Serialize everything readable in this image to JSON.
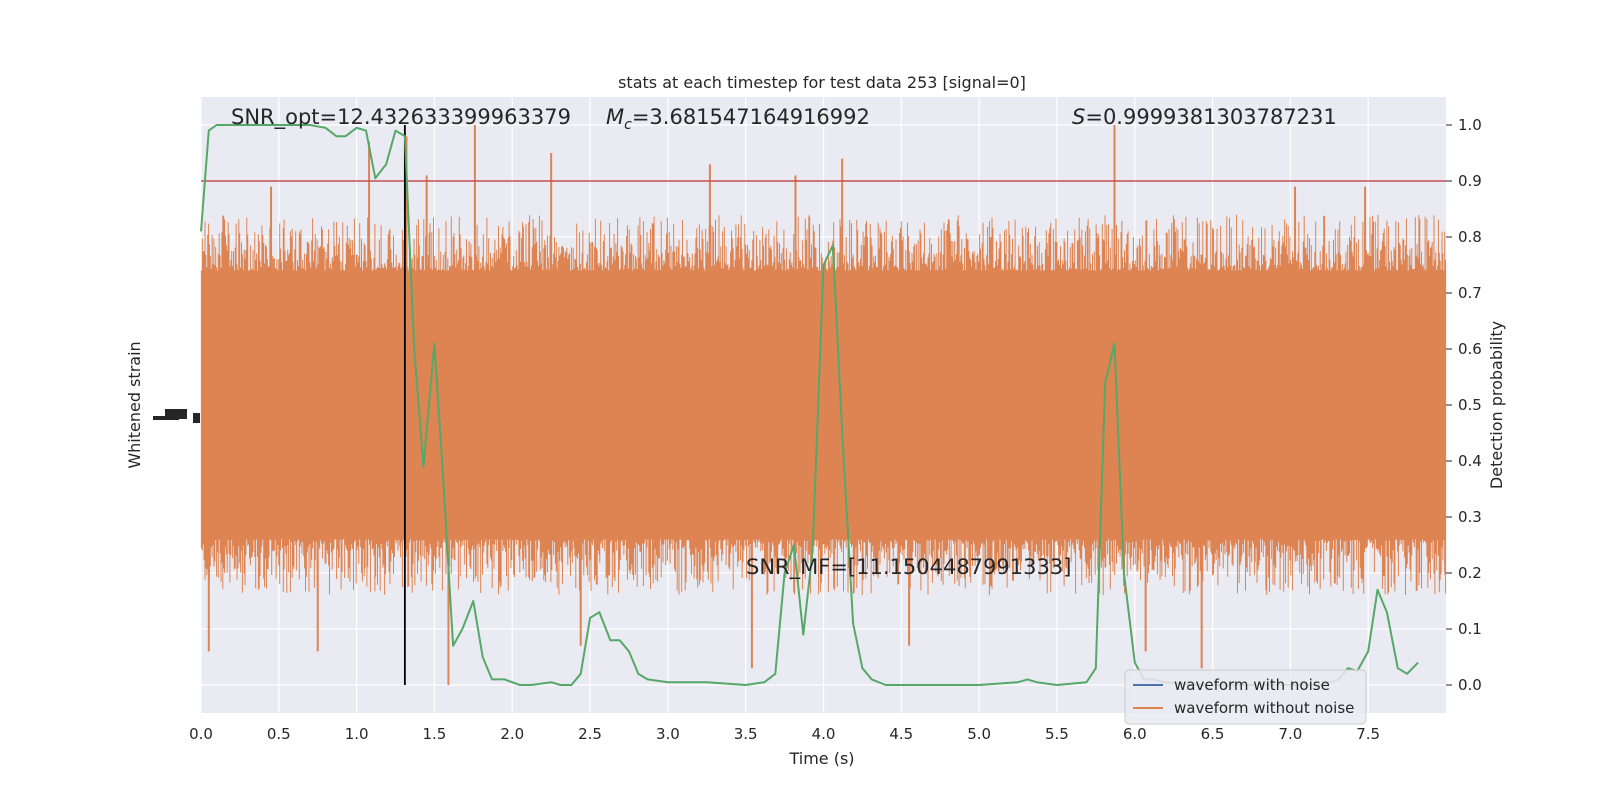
{
  "chart_data": {
    "type": "line",
    "title": "stats at each timestep for test data 253 [signal=0]",
    "xlabel": "Time (s)",
    "ylabel_left": "Whitened strain",
    "ylabel_right": "Detection probability",
    "xlim": [
      0,
      8
    ],
    "ylim_right": [
      -0.05,
      1.05
    ],
    "x_ticks": [
      "0.0",
      "0.5",
      "1.0",
      "1.5",
      "2.0",
      "2.5",
      "3.0",
      "3.5",
      "4.0",
      "4.5",
      "5.0",
      "5.5",
      "6.0",
      "6.5",
      "7.0",
      "7.5"
    ],
    "y_ticks_right": [
      "0.0",
      "0.1",
      "0.2",
      "0.3",
      "0.4",
      "0.5",
      "0.6",
      "0.7",
      "0.8",
      "0.9",
      "1.0"
    ],
    "grid": true,
    "background": "#eaeaf2",
    "threshold": {
      "y": 0.9,
      "color": "#c44e52"
    },
    "marker_line": {
      "x": 1.31,
      "color": "#000000"
    },
    "annotations": {
      "snr_opt": "SNR_opt=12.432633399963379",
      "mc_symbol": "M",
      "mc_sub": "c",
      "mc_value": "=3.681547164916992",
      "s_symbol": "S",
      "s_value": "=0.9999381303787231",
      "snr_mf": "SNR_MF=[11.1504487991333]"
    },
    "legend": {
      "position": "lower-right",
      "entries": [
        {
          "label": "waveform with noise",
          "color": "#4c72b0"
        },
        {
          "label": "waveform without noise",
          "color": "#dd8452"
        }
      ]
    },
    "series": [
      {
        "name": "waveform without noise",
        "color": "#dd8452",
        "style": "dense-noise",
        "core_range": [
          0.26,
          0.74
        ],
        "typical_peak_range": [
          0.16,
          0.84
        ],
        "spikes": [
          [
            0.05,
            0.06
          ],
          [
            0.45,
            0.89
          ],
          [
            0.75,
            0.06
          ],
          [
            1.08,
            0.97
          ],
          [
            1.32,
            0.98
          ],
          [
            1.45,
            0.91
          ],
          [
            1.59,
            0.0
          ],
          [
            1.76,
            1.0
          ],
          [
            2.25,
            0.95
          ],
          [
            2.44,
            0.07
          ],
          [
            3.27,
            0.93
          ],
          [
            3.54,
            0.03
          ],
          [
            3.82,
            0.91
          ],
          [
            4.12,
            0.94
          ],
          [
            4.55,
            0.07
          ],
          [
            5.87,
            1.0
          ],
          [
            6.07,
            0.06
          ],
          [
            6.43,
            0.03
          ],
          [
            7.03,
            0.89
          ],
          [
            7.48,
            0.89
          ]
        ]
      },
      {
        "name": "Detection probability",
        "color": "#55a868",
        "points": [
          [
            0.0,
            0.81
          ],
          [
            0.05,
            0.99
          ],
          [
            0.1,
            1.0
          ],
          [
            0.2,
            1.0
          ],
          [
            0.3,
            1.0
          ],
          [
            0.4,
            1.0
          ],
          [
            0.5,
            1.0
          ],
          [
            0.6,
            1.0
          ],
          [
            0.7,
            1.0
          ],
          [
            0.8,
            0.995
          ],
          [
            0.87,
            0.98
          ],
          [
            0.93,
            0.98
          ],
          [
            1.0,
            0.995
          ],
          [
            1.06,
            0.99
          ],
          [
            1.12,
            0.905
          ],
          [
            1.19,
            0.93
          ],
          [
            1.25,
            0.99
          ],
          [
            1.31,
            0.98
          ],
          [
            1.37,
            0.6
          ],
          [
            1.43,
            0.39
          ],
          [
            1.5,
            0.61
          ],
          [
            1.56,
            0.35
          ],
          [
            1.62,
            0.07
          ],
          [
            1.68,
            0.1
          ],
          [
            1.75,
            0.15
          ],
          [
            1.81,
            0.05
          ],
          [
            1.87,
            0.01
          ],
          [
            1.95,
            0.01
          ],
          [
            2.05,
            0.0
          ],
          [
            2.12,
            0.0
          ],
          [
            2.25,
            0.005
          ],
          [
            2.31,
            0.0
          ],
          [
            2.38,
            0.0
          ],
          [
            2.44,
            0.02
          ],
          [
            2.5,
            0.12
          ],
          [
            2.56,
            0.13
          ],
          [
            2.63,
            0.08
          ],
          [
            2.69,
            0.08
          ],
          [
            2.75,
            0.06
          ],
          [
            2.81,
            0.02
          ],
          [
            2.87,
            0.01
          ],
          [
            3.0,
            0.005
          ],
          [
            3.25,
            0.005
          ],
          [
            3.5,
            0.0
          ],
          [
            3.62,
            0.005
          ],
          [
            3.69,
            0.02
          ],
          [
            3.75,
            0.2
          ],
          [
            3.81,
            0.25
          ],
          [
            3.87,
            0.09
          ],
          [
            3.93,
            0.24
          ],
          [
            4.0,
            0.75
          ],
          [
            4.06,
            0.785
          ],
          [
            4.12,
            0.45
          ],
          [
            4.19,
            0.11
          ],
          [
            4.25,
            0.03
          ],
          [
            4.31,
            0.01
          ],
          [
            4.4,
            0.0
          ],
          [
            4.6,
            0.0
          ],
          [
            5.0,
            0.0
          ],
          [
            5.25,
            0.005
          ],
          [
            5.31,
            0.01
          ],
          [
            5.37,
            0.005
          ],
          [
            5.5,
            0.0
          ],
          [
            5.69,
            0.005
          ],
          [
            5.75,
            0.03
          ],
          [
            5.81,
            0.54
          ],
          [
            5.87,
            0.61
          ],
          [
            5.93,
            0.2
          ],
          [
            6.0,
            0.04
          ],
          [
            6.06,
            0.01
          ],
          [
            6.12,
            0.01
          ],
          [
            6.19,
            0.005
          ],
          [
            6.4,
            0.0
          ],
          [
            6.8,
            0.0
          ],
          [
            7.2,
            0.0
          ],
          [
            7.31,
            0.01
          ],
          [
            7.37,
            0.03
          ],
          [
            7.43,
            0.025
          ],
          [
            7.5,
            0.06
          ],
          [
            7.56,
            0.17
          ],
          [
            7.62,
            0.13
          ],
          [
            7.69,
            0.03
          ],
          [
            7.75,
            0.02
          ],
          [
            7.82,
            0.04
          ]
        ]
      }
    ]
  }
}
